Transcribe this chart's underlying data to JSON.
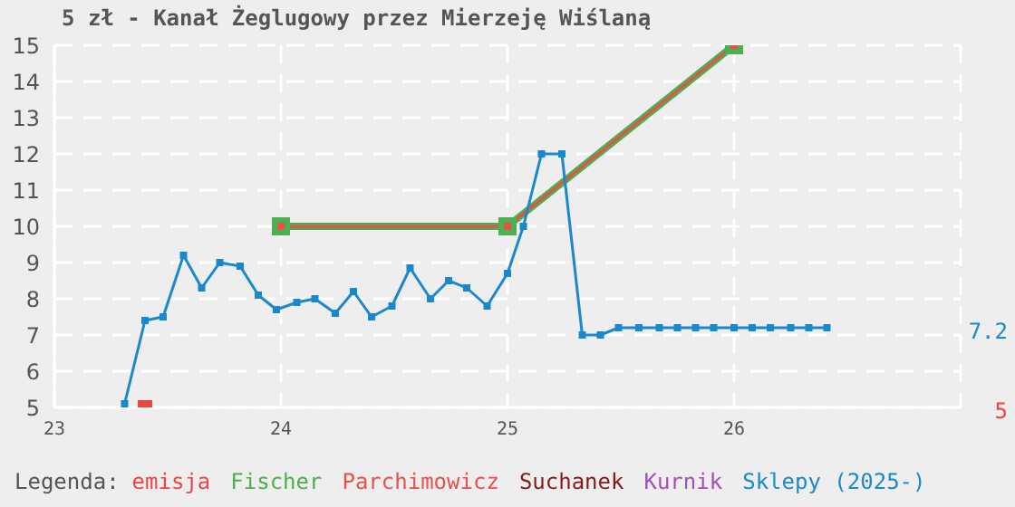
{
  "chart_data": {
    "type": "line",
    "title": "5 zł - Kanał Żeglugowy przez Mierzeję Wiślaną",
    "legend_title": "Legenda:",
    "xlim": [
      23,
      27
    ],
    "xticks": [
      23,
      24,
      25,
      26
    ],
    "ylim": [
      5,
      15
    ],
    "yticks": [
      5,
      6,
      7,
      8,
      9,
      10,
      11,
      12,
      13,
      14,
      15
    ],
    "grid": true,
    "legend": "bottom",
    "marker": "square",
    "series": [
      {
        "name": "emisja",
        "type": "scatter",
        "color": "#ee4444",
        "x": [
          23.4
        ],
        "values": [
          5
        ]
      },
      {
        "name": "Fischer",
        "color": "#4caf50",
        "x": [
          24,
          25,
          26
        ],
        "values": [
          10,
          10,
          15
        ]
      },
      {
        "name": "Parchimowicz",
        "color": "#e8504a",
        "x": [
          24,
          25,
          26
        ],
        "values": [
          10,
          10,
          15
        ]
      },
      {
        "name": "Suchanek",
        "color": "#881818"
      },
      {
        "name": "Kurnik",
        "color": "#a050b8"
      },
      {
        "name": "Sklepy (2025-)",
        "color": "#1a88cc",
        "x": [
          23.31,
          23.4,
          23.48,
          23.57,
          23.65,
          23.73,
          23.82,
          23.9,
          23.98,
          24.07,
          24.15,
          24.24,
          24.32,
          24.4,
          24.49,
          24.57,
          24.66,
          24.74,
          24.82,
          24.91,
          25.0,
          25.07,
          25.15,
          25.24,
          25.33,
          25.41,
          25.49,
          25.58,
          25.67,
          25.75,
          25.83,
          25.91,
          26.0,
          26.08,
          26.16,
          26.25,
          26.33,
          26.41
        ],
        "values": [
          5.1,
          7.4,
          7.5,
          9.2,
          8.3,
          9.0,
          8.9,
          8.1,
          7.7,
          7.9,
          8.0,
          7.6,
          8.2,
          7.5,
          7.8,
          8.85,
          8.0,
          8.5,
          8.3,
          7.8,
          8.7,
          10.0,
          12.0,
          12.0,
          7.0,
          7.0,
          7.2,
          7.2,
          7.2,
          7.2,
          7.2,
          7.2,
          7.2,
          7.2,
          7.2,
          7.2,
          7.2,
          7.2
        ]
      }
    ],
    "annotations": [
      "7.2",
      "5"
    ]
  }
}
